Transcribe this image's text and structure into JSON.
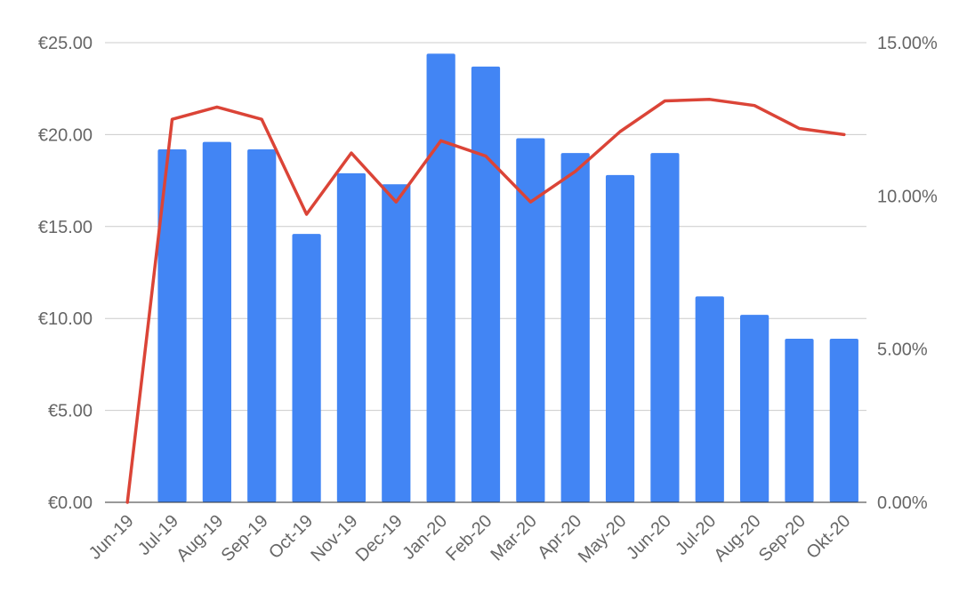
{
  "chart_data": {
    "type": "bar",
    "categories": [
      "Jun-19",
      "Jul-19",
      "Aug-19",
      "Sep-19",
      "Oct-19",
      "Nov-19",
      "Dec-19",
      "Jan-20",
      "Feb-20",
      "Mar-20",
      "Apr-20",
      "May-20",
      "Jun-20",
      "Jul-20",
      "Aug-20",
      "Sep-20",
      "Okt-20"
    ],
    "series": [
      {
        "type": "bar",
        "axis": "left",
        "color": "#4285f4",
        "values": [
          0,
          19.2,
          19.6,
          19.2,
          14.6,
          17.9,
          17.3,
          24.4,
          23.7,
          19.8,
          19.0,
          17.8,
          19.0,
          11.2,
          10.2,
          8.9,
          8.9
        ]
      },
      {
        "type": "line",
        "axis": "right",
        "color": "#db4437",
        "values": [
          0,
          12.5,
          12.9,
          12.5,
          9.4,
          11.4,
          9.8,
          11.8,
          11.3,
          9.8,
          10.8,
          12.1,
          13.1,
          13.15,
          12.95,
          12.2,
          12.0
        ]
      }
    ],
    "y_left": {
      "ylim": [
        0,
        25
      ],
      "ticks": [
        0,
        5,
        10,
        15,
        20,
        25
      ],
      "tick_labels": [
        "€0.00",
        "€5.00",
        "€10.00",
        "€15.00",
        "€20.00",
        "€25.00"
      ]
    },
    "y_right": {
      "ylim": [
        0,
        15
      ],
      "ticks": [
        0,
        5,
        10,
        15
      ],
      "tick_labels": [
        "0.00%",
        "5.00%",
        "10.00%",
        "15.00%"
      ]
    },
    "title": "",
    "xlabel": "",
    "ylabel": "",
    "grid": true,
    "legend": "none"
  }
}
